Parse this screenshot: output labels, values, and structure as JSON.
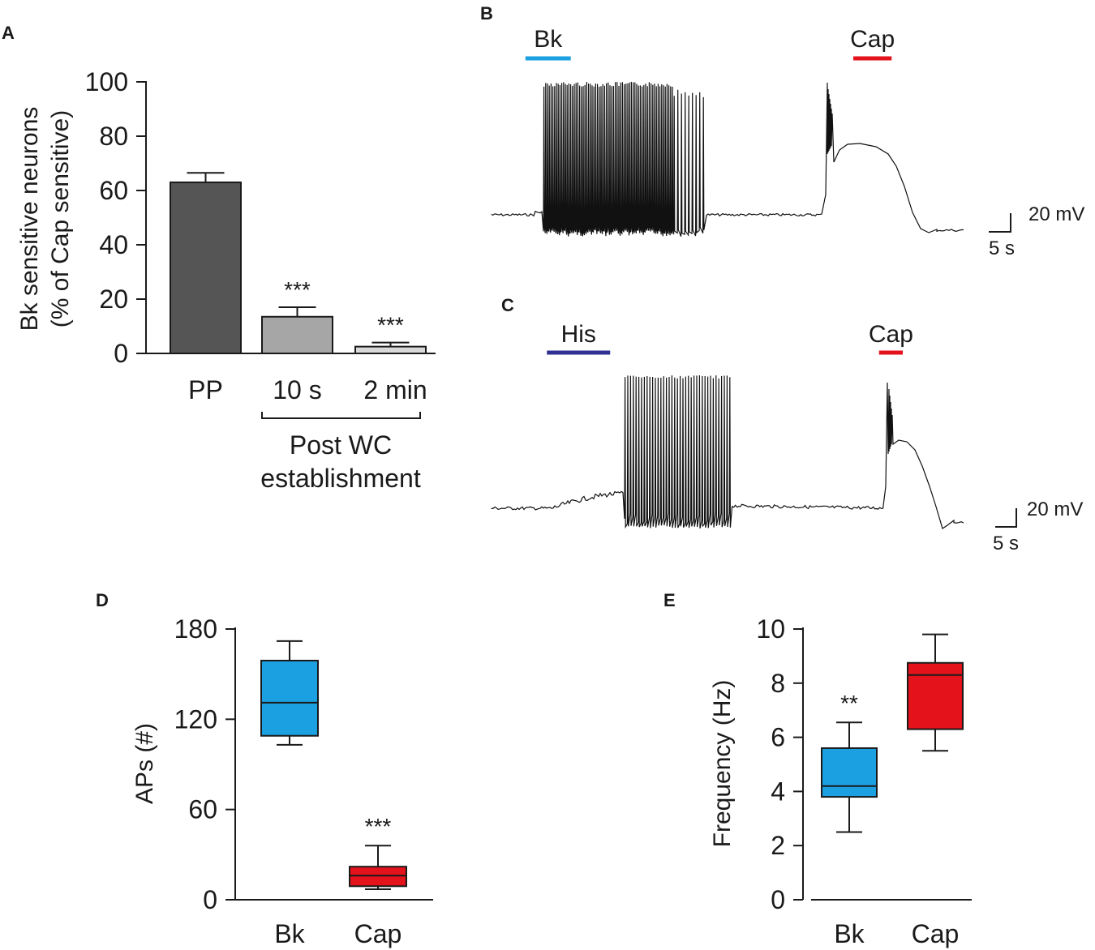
{
  "panels": {
    "A": "A",
    "B": "B",
    "C": "C",
    "D": "D",
    "E": "E"
  },
  "colors": {
    "bar_pp": "#555555",
    "bar_10s": "#a6a6a6",
    "bar_2min": "#d9d9d9",
    "bk_blue": "#1ba1e2",
    "cap_red": "#e3121b",
    "his_navy": "#2e3192",
    "trace": "#111111"
  },
  "chart_data": [
    {
      "id": "A",
      "type": "bar",
      "ylabel_line1": "Bk sensitive neurons",
      "ylabel_line2": "(% of Cap sensitive)",
      "ylim": [
        0,
        100
      ],
      "yticks": [
        0,
        20,
        40,
        60,
        80,
        100
      ],
      "ytick_labels": [
        "0",
        "20",
        "40",
        "60",
        "80",
        "100"
      ],
      "categories": [
        "PP",
        "10 s",
        "2 min"
      ],
      "values": [
        63,
        13.5,
        2.5
      ],
      "errors": [
        3.5,
        3.5,
        1.5
      ],
      "significance": [
        "",
        "***",
        "***"
      ],
      "group_label_line1": "Post WC",
      "group_label_line2": "establishment"
    },
    {
      "id": "B",
      "type": "trace",
      "drugs": [
        {
          "label": "Bk",
          "start_s": 1.2,
          "end_s": 3.8
        },
        {
          "label": "Cap",
          "start_s": 20.0,
          "end_s": 22.2
        }
      ],
      "scale_voltage": "20 mV",
      "scale_time": "5 s"
    },
    {
      "id": "C",
      "type": "trace",
      "drugs": [
        {
          "label": "His",
          "start_s": 3.5,
          "end_s": 7.5
        },
        {
          "label": "Cap",
          "start_s": 24.5,
          "end_s": 26.0
        }
      ],
      "scale_voltage": "20 mV",
      "scale_time": "5 s"
    },
    {
      "id": "D",
      "type": "box",
      "ylabel": "APs (#)",
      "ylim": [
        0,
        180
      ],
      "yticks": [
        0,
        60,
        120,
        180
      ],
      "ytick_labels": [
        "0",
        "60",
        "120",
        "180"
      ],
      "categories": [
        "Bk",
        "Cap"
      ],
      "boxes": [
        {
          "min": 103,
          "q1": 109,
          "median": 131,
          "q3": 159,
          "max": 172
        },
        {
          "min": 7,
          "q1": 9,
          "median": 16,
          "q3": 22,
          "max": 36
        }
      ],
      "significance": [
        "",
        "***"
      ]
    },
    {
      "id": "E",
      "type": "box",
      "ylabel": "Frequency (Hz)",
      "ylim": [
        0,
        10
      ],
      "yticks": [
        0,
        2,
        4,
        6,
        8,
        10
      ],
      "ytick_labels": [
        "0",
        "2",
        "4",
        "6",
        "8",
        "10"
      ],
      "categories": [
        "Bk",
        "Cap"
      ],
      "boxes": [
        {
          "min": 2.5,
          "q1": 3.8,
          "median": 4.2,
          "q3": 5.6,
          "max": 6.55
        },
        {
          "min": 5.5,
          "q1": 6.3,
          "median": 8.3,
          "q3": 8.75,
          "max": 9.8
        }
      ],
      "significance": [
        "**",
        ""
      ]
    }
  ]
}
